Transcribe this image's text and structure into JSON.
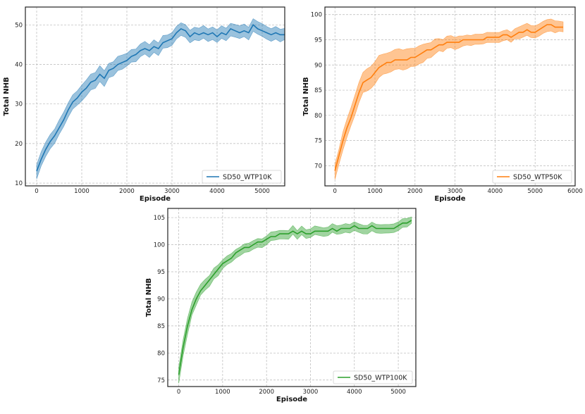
{
  "chart_data": [
    {
      "type": "line",
      "xlabel": "Episode",
      "ylabel": "Total NHB",
      "xlim": [
        -250,
        5500
      ],
      "ylim": [
        9.3,
        54.5
      ],
      "xticks": [
        0,
        1000,
        2000,
        3000,
        4000,
        5000
      ],
      "yticks": [
        10,
        20,
        30,
        40,
        50
      ],
      "grid": true,
      "legend": "bottom-right",
      "series": [
        {
          "name": "SD50_WTP10K",
          "color": "#1f77b4",
          "x": [
            0,
            100,
            200,
            300,
            400,
            500,
            600,
            700,
            800,
            900,
            1000,
            1100,
            1200,
            1300,
            1400,
            1500,
            1600,
            1700,
            1800,
            1900,
            2000,
            2100,
            2200,
            2300,
            2400,
            2500,
            2600,
            2700,
            2800,
            2900,
            3000,
            3100,
            3200,
            3300,
            3400,
            3500,
            3600,
            3700,
            3800,
            3900,
            4000,
            4100,
            4200,
            4300,
            4400,
            4500,
            4600,
            4700,
            4800,
            4900,
            5000,
            5100,
            5200,
            5300,
            5400,
            5500
          ],
          "mean": [
            13,
            16,
            18.5,
            20.5,
            22,
            24,
            26,
            28.5,
            30.5,
            31.5,
            33,
            34,
            35.5,
            36,
            37.5,
            36.5,
            38.5,
            39,
            40,
            40.5,
            41,
            42,
            42.5,
            43.5,
            44,
            43.5,
            44.5,
            44,
            45.5,
            46,
            46.5,
            48,
            49,
            48.5,
            47,
            48,
            47.5,
            48,
            47.5,
            48,
            47,
            48,
            47.5,
            49,
            48.5,
            48,
            48.5,
            48,
            50,
            49,
            48.5,
            48,
            47.5,
            48,
            47.5,
            47.5
          ],
          "band": [
            1.8,
            1.8,
            1.8,
            1.8,
            1.8,
            1.8,
            1.8,
            1.8,
            1.8,
            1.8,
            2,
            2,
            2,
            2,
            2,
            2,
            1.8,
            1.8,
            1.8,
            1.8,
            1.6,
            1.6,
            1.6,
            1.6,
            1.6,
            1.6,
            1.6,
            1.6,
            1.6,
            1.6,
            1.6,
            1.6,
            1.6,
            1.6,
            1.6,
            1.6,
            1.6,
            1.6,
            1.6,
            1.6,
            1.6,
            1.6,
            1.6,
            1.6,
            1.6,
            1.6,
            1.6,
            1.6,
            1.6,
            1.6,
            1.6,
            1.6,
            1.6,
            1.6,
            1.6,
            1.4
          ]
        }
      ]
    },
    {
      "type": "line",
      "xlabel": "Episode",
      "ylabel": "Total NHB",
      "xlim": [
        -250,
        6000
      ],
      "ylim": [
        66,
        101.5
      ],
      "xticks": [
        0,
        1000,
        2000,
        3000,
        4000,
        5000,
        6000
      ],
      "yticks": [
        70,
        75,
        80,
        85,
        90,
        95,
        100
      ],
      "grid": true,
      "legend": "bottom-right",
      "series": [
        {
          "name": "SD50_WTP50K",
          "color": "#ff7f0e",
          "x": [
            0,
            100,
            200,
            300,
            400,
            500,
            600,
            700,
            800,
            900,
            1000,
            1100,
            1200,
            1300,
            1400,
            1500,
            1600,
            1700,
            1800,
            1900,
            2000,
            2100,
            2200,
            2300,
            2400,
            2500,
            2600,
            2700,
            2800,
            2900,
            3000,
            3100,
            3200,
            3300,
            3400,
            3500,
            3600,
            3700,
            3800,
            3900,
            4000,
            4100,
            4200,
            4300,
            4400,
            4500,
            4600,
            4700,
            4800,
            4900,
            5000,
            5100,
            5200,
            5300,
            5400,
            5500,
            5600,
            5700
          ],
          "mean": [
            69,
            72,
            75,
            77.5,
            79.5,
            82,
            84.5,
            86.5,
            87,
            87.5,
            88.5,
            89.5,
            90,
            90.5,
            90.5,
            91,
            91,
            91,
            91,
            91.5,
            91.5,
            92,
            92.5,
            93,
            93,
            93.5,
            94,
            94,
            94.5,
            94.5,
            94.5,
            94.5,
            95,
            95,
            95,
            95,
            95,
            95,
            95.5,
            95.5,
            95.5,
            95.5,
            96,
            96,
            95.5,
            96,
            96.5,
            96.5,
            97,
            96.5,
            96.5,
            97,
            97.5,
            98,
            98,
            97.5,
            97.5,
            97.5
          ],
          "band": [
            1.5,
            1.5,
            1.8,
            1.8,
            1.8,
            2,
            2,
            2,
            2.2,
            2.2,
            2.2,
            2.2,
            2,
            2,
            2,
            2,
            2,
            2,
            2,
            1.8,
            1.8,
            1.8,
            1.8,
            1.5,
            1.5,
            1.5,
            1.2,
            1.2,
            1.2,
            1.2,
            1.2,
            1.2,
            1,
            1,
            1,
            1,
            1,
            1,
            1,
            1,
            1,
            1,
            1,
            1,
            1,
            1,
            1.2,
            1.2,
            1.2,
            1.2,
            1.2,
            1.2,
            1.2,
            1.2,
            1.2,
            1.2,
            1,
            1
          ]
        }
      ]
    },
    {
      "type": "line",
      "xlabel": "Episode",
      "ylabel": "Total NHB",
      "xlim": [
        -250,
        5400
      ],
      "ylim": [
        73.8,
        106.7
      ],
      "xticks": [
        0,
        1000,
        2000,
        3000,
        4000,
        5000
      ],
      "yticks": [
        75,
        80,
        85,
        90,
        95,
        100,
        105
      ],
      "grid": true,
      "legend": "bottom-right",
      "series": [
        {
          "name": "SD50_WTP100K",
          "color": "#2ca02c",
          "x": [
            0,
            100,
            200,
            300,
            400,
            500,
            600,
            700,
            800,
            900,
            1000,
            1100,
            1200,
            1300,
            1400,
            1500,
            1600,
            1700,
            1800,
            1900,
            2000,
            2100,
            2200,
            2300,
            2400,
            2500,
            2600,
            2700,
            2800,
            2900,
            3000,
            3100,
            3200,
            3300,
            3400,
            3500,
            3600,
            3700,
            3800,
            3900,
            4000,
            4100,
            4200,
            4300,
            4400,
            4500,
            4600,
            4700,
            4800,
            4900,
            5000,
            5100,
            5200,
            5300
          ],
          "mean": [
            76,
            81,
            85,
            88,
            90,
            91.5,
            92.5,
            93.5,
            94.5,
            95.5,
            96.5,
            97,
            97.5,
            98.5,
            99,
            99.5,
            99.5,
            100,
            100.5,
            100.5,
            101,
            101.5,
            101.5,
            102,
            102,
            102,
            102.5,
            102,
            102.5,
            102,
            102,
            102.5,
            102.5,
            102.5,
            102.5,
            103,
            102.5,
            103,
            103,
            103,
            103.5,
            103,
            103,
            103,
            103.5,
            103,
            103,
            103,
            103,
            103,
            103.5,
            104,
            104,
            104.5
          ],
          "band": [
            1.5,
            1.5,
            1.5,
            1.2,
            1.2,
            1,
            1,
            1,
            1,
            1,
            0.8,
            0.8,
            0.8,
            0.8,
            0.8,
            0.8,
            0.8,
            0.8,
            0.8,
            0.8,
            0.8,
            0.8,
            0.8,
            0.8,
            0.8,
            0.8,
            0.8,
            0.8,
            0.8,
            0.8,
            0.8,
            0.8,
            0.8,
            0.8,
            0.8,
            0.8,
            0.8,
            0.8,
            0.8,
            0.8,
            0.8,
            0.8,
            0.8,
            0.8,
            0.8,
            0.8,
            0.8,
            0.8,
            0.8,
            0.8,
            0.8,
            0.8,
            0.8,
            0.6
          ]
        }
      ]
    }
  ]
}
